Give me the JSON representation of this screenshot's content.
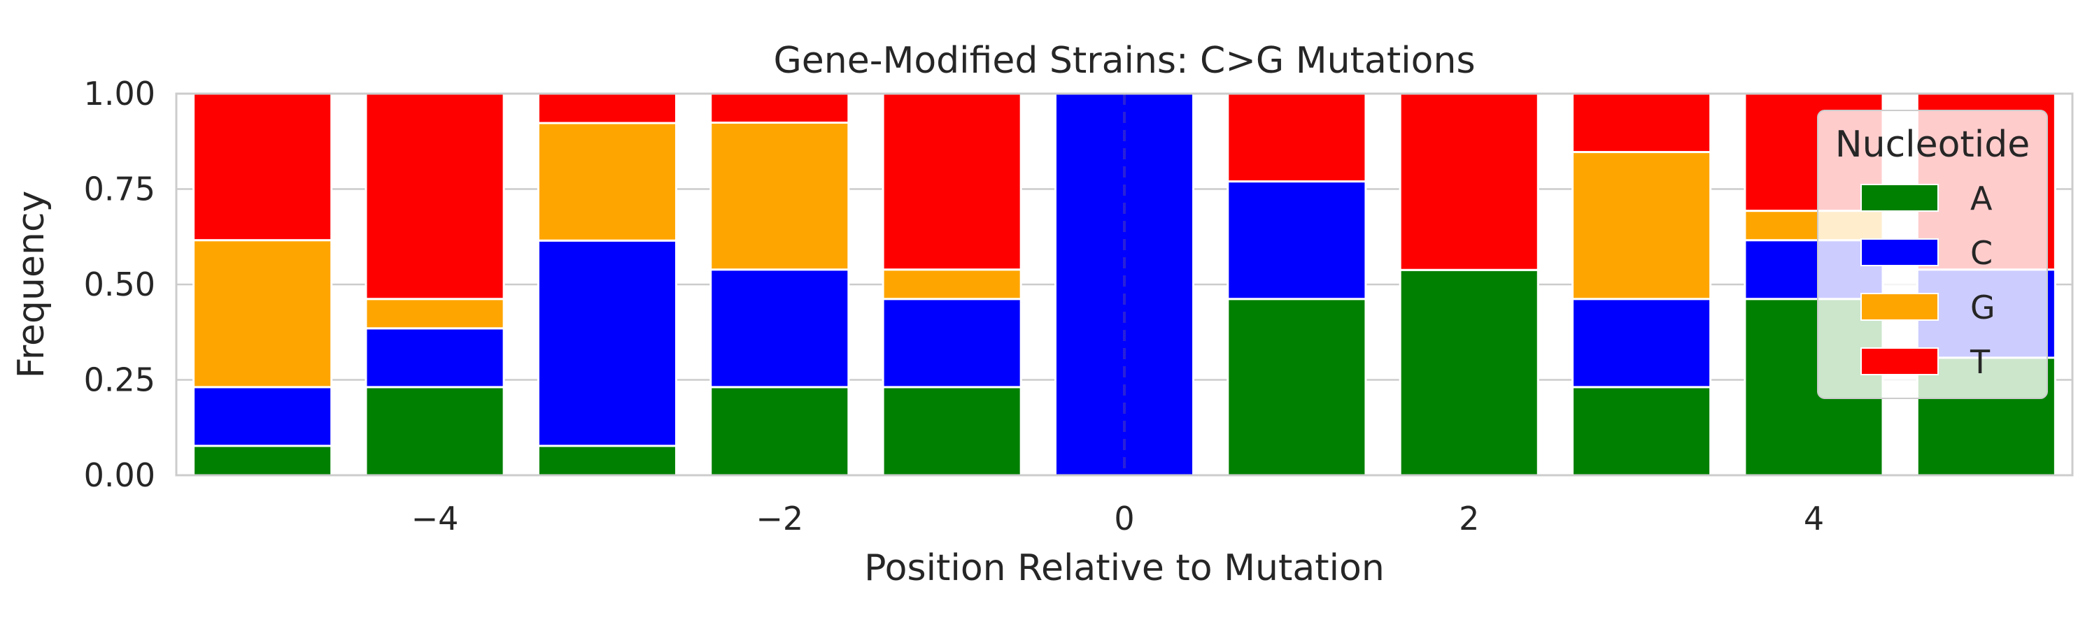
{
  "chart_data": {
    "type": "bar",
    "stacked": true,
    "title": "Gene-Modified Strains: C>G Mutations",
    "xlabel": "Position Relative to Mutation",
    "ylabel": "Frequency",
    "x": [
      -5,
      -4,
      -3,
      -2,
      -1,
      0,
      1,
      2,
      3,
      4,
      5
    ],
    "xticks": [
      "−4",
      "−2",
      "0",
      "2",
      "4"
    ],
    "xtick_values": [
      -4,
      -2,
      0,
      2,
      4
    ],
    "yticks": [
      "0.00",
      "0.25",
      "0.50",
      "0.75",
      "1.00"
    ],
    "ytick_values": [
      0,
      0.25,
      0.5,
      0.75,
      1.0
    ],
    "ylim": [
      0,
      1
    ],
    "xlim": [
      -5.5,
      5.5
    ],
    "grid": true,
    "mutation_line_x": 0,
    "legend": {
      "title": "Nucleotide",
      "placement": "upper right"
    },
    "series": [
      {
        "name": "A",
        "color": "#008000",
        "values": [
          0.077,
          0.231,
          0.077,
          0.231,
          0.231,
          0.0,
          0.462,
          0.538,
          0.231,
          0.462,
          0.308
        ]
      },
      {
        "name": "C",
        "color": "#0000ff",
        "values": [
          0.154,
          0.154,
          0.538,
          0.308,
          0.231,
          1.0,
          0.308,
          0.0,
          0.231,
          0.154,
          0.231
        ]
      },
      {
        "name": "G",
        "color": "#ffa500",
        "values": [
          0.385,
          0.077,
          0.308,
          0.385,
          0.077,
          0.0,
          0.0,
          0.0,
          0.385,
          0.077,
          0.0
        ]
      },
      {
        "name": "T",
        "color": "#ff0000",
        "values": [
          0.384,
          0.538,
          0.077,
          0.076,
          0.461,
          0.0,
          0.23,
          0.462,
          0.153,
          0.307,
          0.461
        ]
      }
    ]
  }
}
